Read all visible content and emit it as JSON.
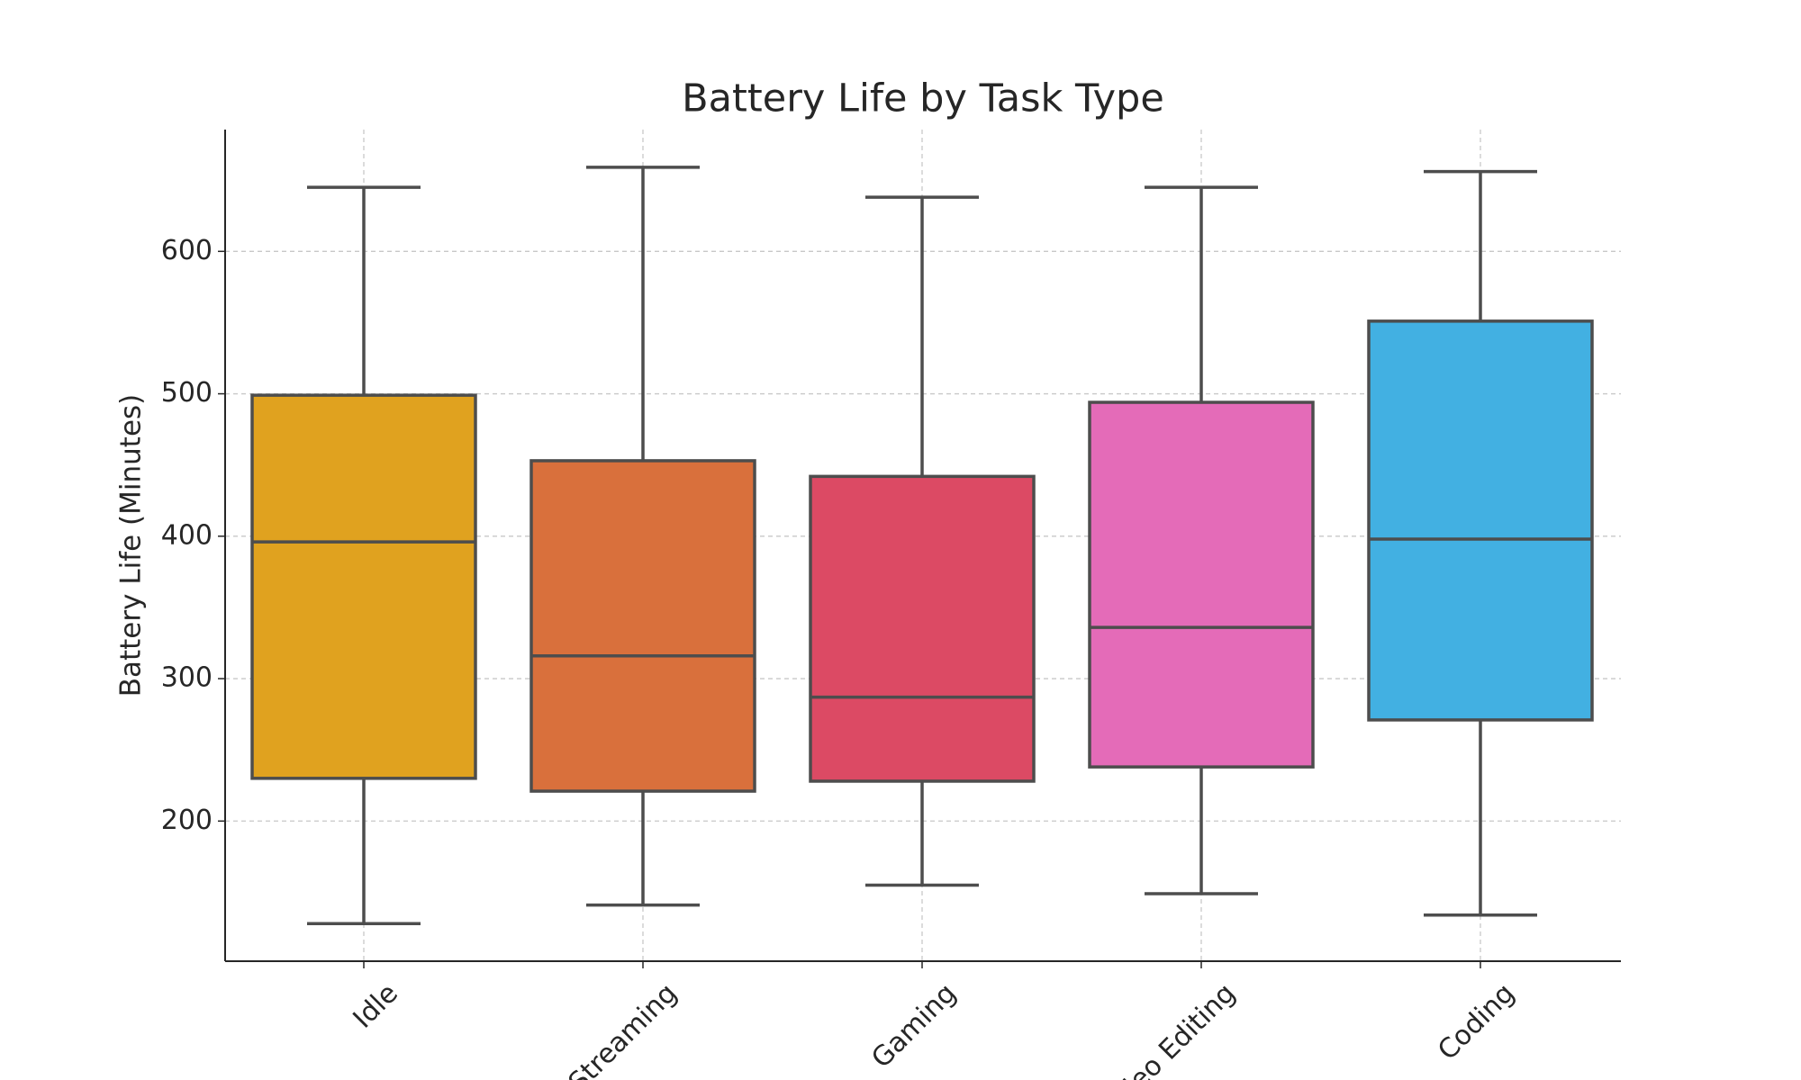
{
  "chart_data": {
    "type": "box",
    "title": "Battery Life by Task Type",
    "y_label": "Battery Life (Minutes)",
    "categories": [
      "Idle",
      "Streaming",
      "Gaming",
      "Video Editing",
      "Coding"
    ],
    "colors": [
      "#e0a21f",
      "#d9703c",
      "#dc4a64",
      "#e46bb8",
      "#42b0e2"
    ],
    "boxes": [
      {
        "min": 128,
        "q1": 230,
        "median": 396,
        "q3": 499,
        "max": 645
      },
      {
        "min": 141,
        "q1": 221,
        "median": 316,
        "q3": 453,
        "max": 659
      },
      {
        "min": 155,
        "q1": 228,
        "median": 287,
        "q3": 442,
        "max": 638
      },
      {
        "min": 149,
        "q1": 238,
        "median": 336,
        "q3": 494,
        "max": 645
      },
      {
        "min": 134,
        "q1": 271,
        "median": 398,
        "q3": 551,
        "max": 656
      }
    ],
    "ylim": [
      101.6,
      685.5
    ],
    "yticks": [
      200,
      300,
      400,
      500,
      600
    ],
    "grid": true
  }
}
